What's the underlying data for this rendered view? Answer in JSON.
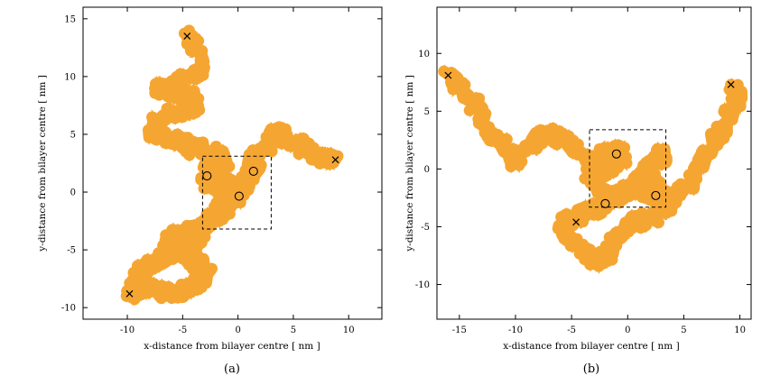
{
  "chart_data": [
    {
      "type": "line",
      "panel_label": "(a)",
      "xlabel": "x-distance from bilayer centre [ nm ]",
      "ylabel": "y-distance from bilayer centre [ nm ]",
      "xlim": [
        -14,
        13
      ],
      "ylim": [
        -11,
        16
      ],
      "xticks": [
        -10,
        -5,
        0,
        5,
        10
      ],
      "yticks": [
        -10,
        -5,
        0,
        5,
        10,
        15
      ],
      "trajectory_color": "#f5a632",
      "grid": false,
      "series": [
        {
          "x": [
            -4.6,
            -4.0,
            -3.2,
            -3.6,
            -5.4,
            -6.6,
            -7.2,
            -5.8,
            -4.2,
            -3.8,
            -5.2,
            -7.2,
            -7.6,
            -5.8,
            -4.6,
            -4.4,
            -3.2,
            -1.8,
            -1.0,
            -2.6,
            -3.0,
            -2.4,
            -1.8,
            -1.2,
            -0.4,
            -0.2,
            -1.0,
            -1.2,
            -2.0,
            -2.8,
            -3.6,
            -3.4,
            -3.8,
            -4.6,
            -5.6,
            -6.4,
            -7.2,
            -8.2,
            -9.2,
            -9.8,
            -9.2,
            -8.0,
            -6.4,
            -4.8,
            -3.6,
            -2.8,
            -3.6,
            -5.0,
            -6.0,
            -6.8,
            -5.6,
            -3.6,
            -2.6,
            -2.0,
            -1.6,
            -0.4,
            0.4,
            1.0,
            1.6,
            1.2,
            2.2,
            3.0,
            3.6,
            4.6,
            5.6,
            6.6,
            7.4,
            8.2,
            8.8
          ],
          "y": [
            13.5,
            12.6,
            11.4,
            10.0,
            9.6,
            8.9,
            9.0,
            8.6,
            8.2,
            7.3,
            6.9,
            6.3,
            5.1,
            4.6,
            4.4,
            3.6,
            3.9,
            3.3,
            2.6,
            2.1,
            1.4,
            0.3,
            0.6,
            0.9,
            0.1,
            -0.4,
            -0.8,
            -1.5,
            -2.0,
            -2.5,
            -3.3,
            -3.8,
            -4.6,
            -4.5,
            -4.9,
            -5.6,
            -5.9,
            -6.6,
            -7.3,
            -8.8,
            -8.4,
            -8.2,
            -8.8,
            -8.4,
            -7.9,
            -7.1,
            -6.2,
            -5.4,
            -5.0,
            -4.4,
            -3.6,
            -3.1,
            -2.7,
            -2.0,
            -1.2,
            -0.4,
            0.6,
            1.3,
            1.8,
            2.7,
            3.5,
            4.6,
            5.3,
            4.4,
            4.1,
            3.3,
            2.9,
            3.0,
            2.8
          ]
        }
      ],
      "markers": [
        {
          "kind": "cross",
          "x": -4.6,
          "y": 13.5
        },
        {
          "kind": "cross",
          "x": -9.8,
          "y": -8.8
        },
        {
          "kind": "cross",
          "x": 8.8,
          "y": 2.8
        },
        {
          "kind": "circle",
          "x": -2.8,
          "y": 1.4
        },
        {
          "kind": "circle",
          "x": 1.4,
          "y": 1.8
        },
        {
          "kind": "circle",
          "x": 0.1,
          "y": -0.35
        }
      ],
      "box": {
        "x": [
          -3.2,
          3.0
        ],
        "y": [
          -3.2,
          3.1
        ]
      }
    },
    {
      "type": "line",
      "panel_label": "(b)",
      "xlabel": "x-distance from bilayer centre [ nm ]",
      "ylabel": "y-distance from bilayer centre [ nm ]",
      "xlim": [
        -17,
        11
      ],
      "ylim": [
        -13,
        14
      ],
      "xticks": [
        -15,
        -10,
        -5,
        0,
        5,
        10
      ],
      "yticks": [
        -10,
        -5,
        0,
        5,
        10
      ],
      "trajectory_color": "#f5a632",
      "grid": false,
      "series": [
        {
          "x": [
            -16.0,
            -14.8,
            -13.6,
            -12.8,
            -11.8,
            -10.8,
            -10.0,
            -9.0,
            -8.2,
            -6.8,
            -5.6,
            -4.4,
            -3.2,
            -2.4,
            -1.4,
            -0.6,
            -1.0,
            -2.0,
            -3.0,
            -3.6,
            -3.0,
            -2.0,
            -1.2,
            -0.4,
            0.4,
            1.2,
            2.0,
            2.8,
            3.6,
            2.8,
            1.6,
            1.0,
            1.8,
            2.8,
            3.2,
            2.6,
            1.6,
            0.4,
            -1.4,
            -2.0,
            -2.8,
            -4.0,
            -5.0,
            -5.8,
            -5.4,
            -4.2,
            -3.4,
            -2.8,
            -2.0,
            -1.2,
            -0.4,
            0.8,
            1.8,
            3.0,
            4.2,
            5.2,
            6.2,
            7.2,
            8.0,
            9.0,
            9.8,
            9.2
          ],
          "y": [
            8.1,
            7.0,
            5.6,
            3.9,
            2.8,
            1.6,
            0.6,
            1.5,
            2.6,
            3.0,
            2.3,
            1.4,
            0.4,
            -0.2,
            0.2,
            1.0,
            1.6,
            1.3,
            0.5,
            -0.6,
            -1.4,
            -2.1,
            -2.6,
            -2.2,
            -1.6,
            -0.8,
            -0.6,
            -1.8,
            -2.4,
            -2.6,
            -2.2,
            -1.0,
            0.1,
            0.9,
            1.6,
            0.7,
            -0.4,
            -1.8,
            -2.4,
            -3.0,
            -3.6,
            -3.9,
            -4.3,
            -4.8,
            -6.0,
            -6.6,
            -7.6,
            -8.2,
            -7.6,
            -6.4,
            -5.6,
            -4.2,
            -4.7,
            -3.6,
            -2.5,
            -1.4,
            -0.2,
            1.4,
            2.9,
            4.6,
            6.1,
            7.3
          ]
        }
      ],
      "markers": [
        {
          "kind": "cross",
          "x": -16.0,
          "y": 8.1
        },
        {
          "kind": "cross",
          "x": 9.2,
          "y": 7.3
        },
        {
          "kind": "cross",
          "x": -4.6,
          "y": -4.6
        },
        {
          "kind": "circle",
          "x": -1.0,
          "y": 1.3
        },
        {
          "kind": "circle",
          "x": -2.0,
          "y": -3.0
        },
        {
          "kind": "circle",
          "x": 2.5,
          "y": -2.3
        }
      ],
      "box": {
        "x": [
          -3.4,
          3.4
        ],
        "y": [
          -3.3,
          3.4
        ]
      }
    }
  ]
}
